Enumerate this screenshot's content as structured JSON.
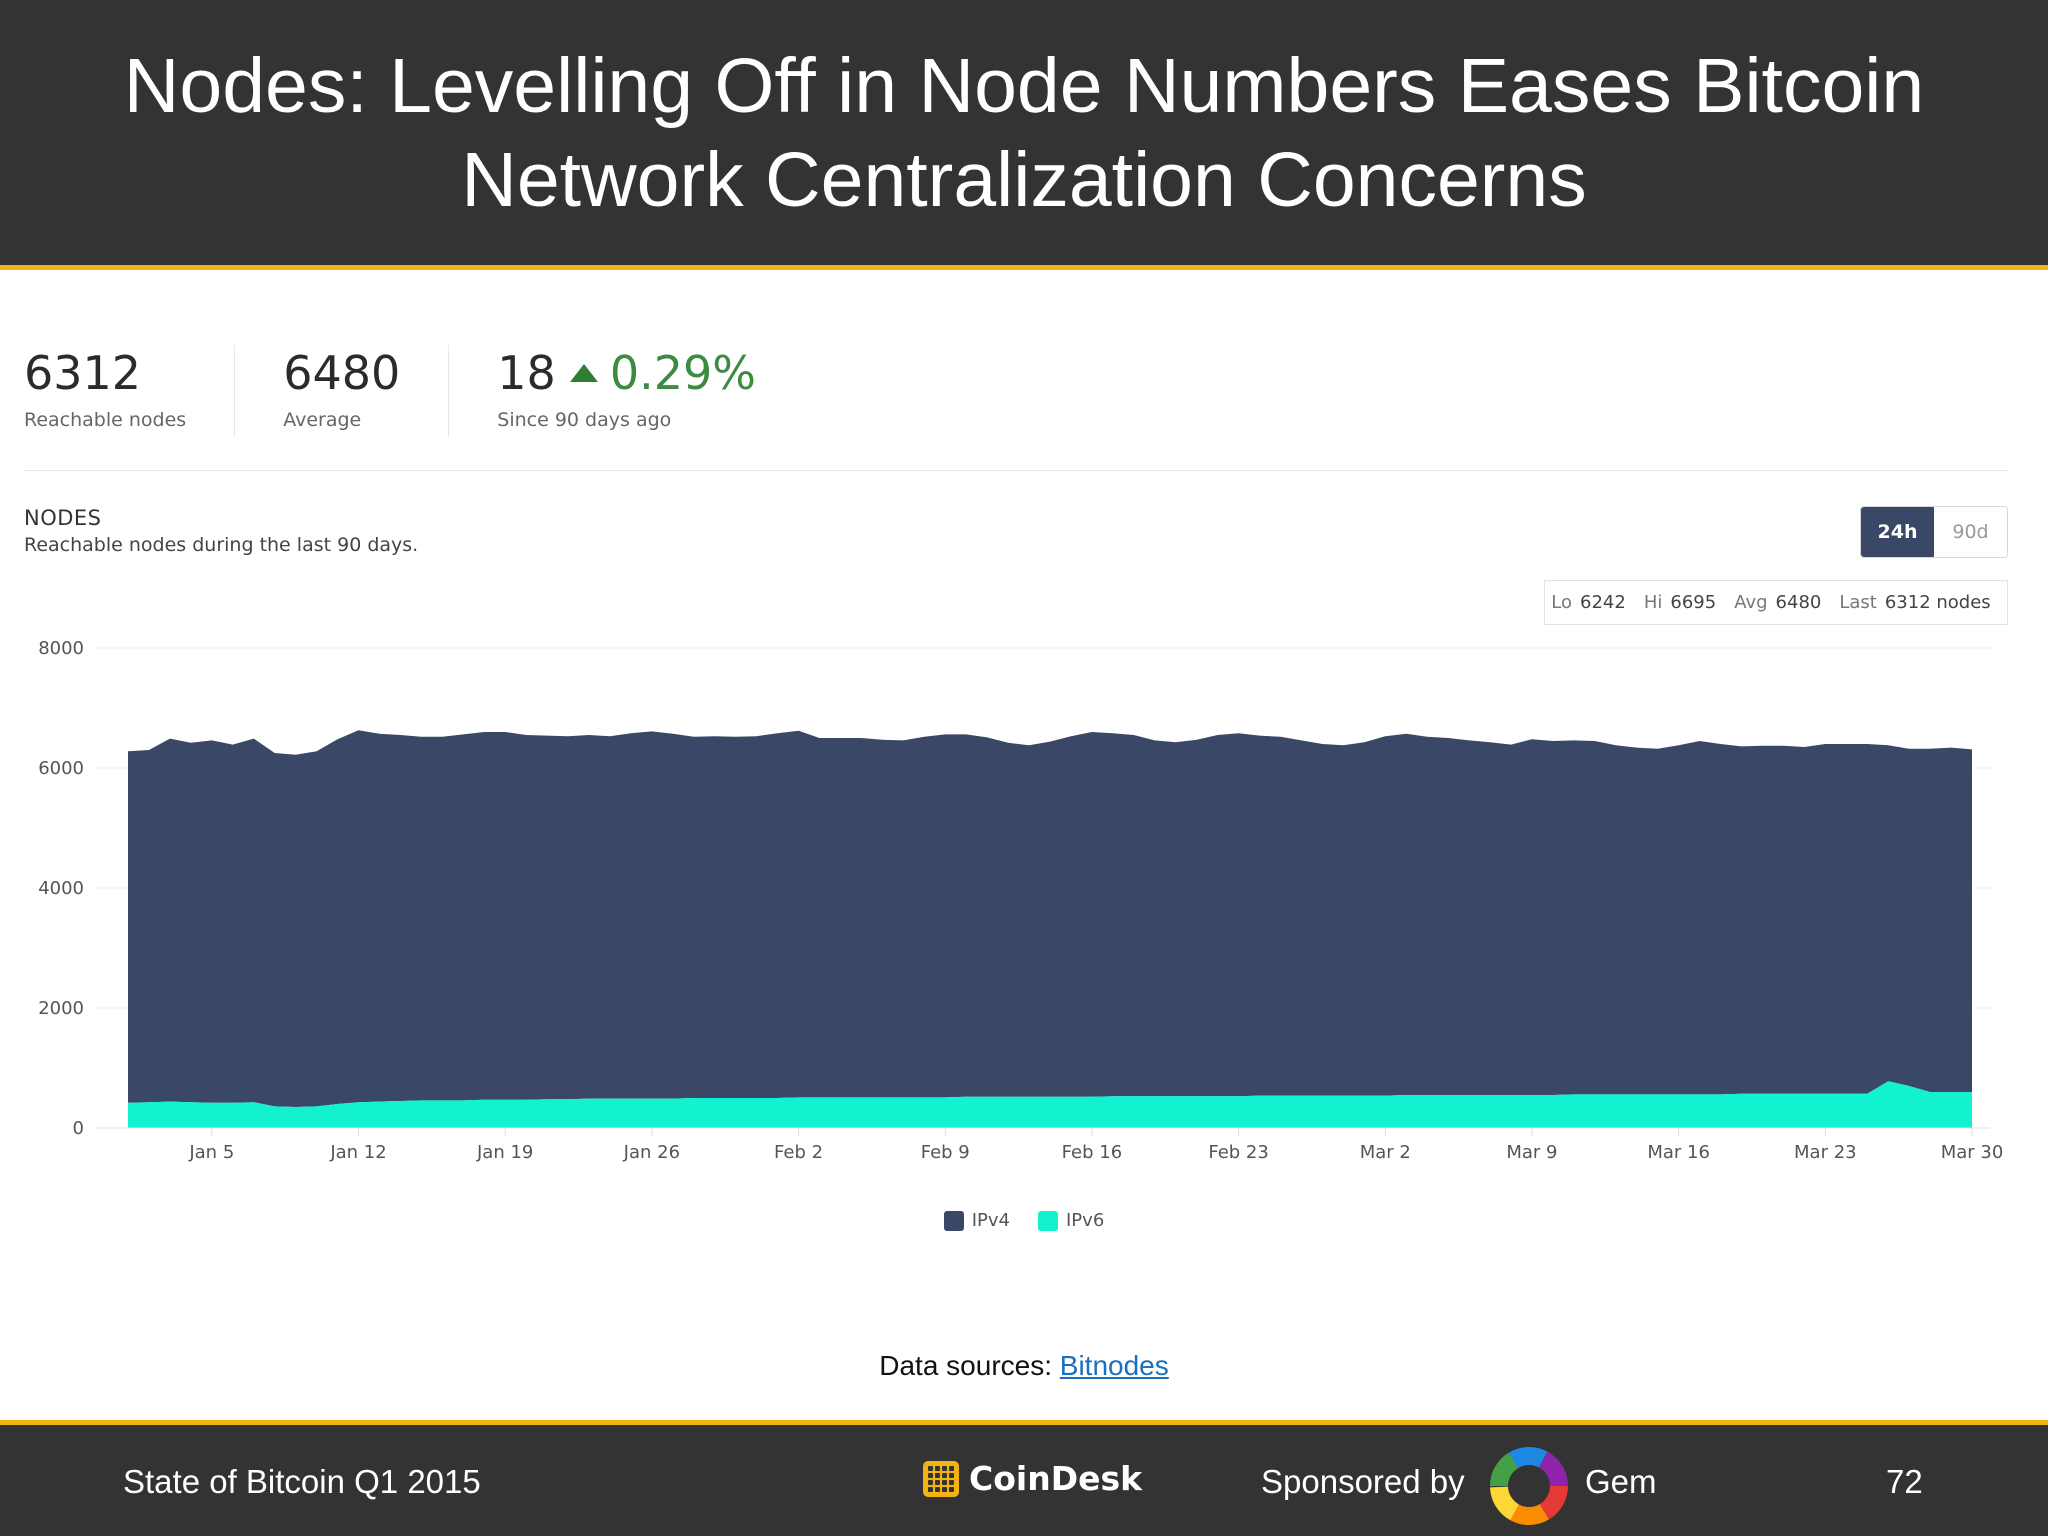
{
  "slide": {
    "title": "Nodes: Levelling Off in Node Numbers Eases Bitcoin Network Centralization Concerns"
  },
  "stats": {
    "reachable": {
      "value": "6312",
      "label": "Reachable nodes"
    },
    "average": {
      "value": "6480",
      "label": "Average"
    },
    "change": {
      "count": "18",
      "percent": "0.29%",
      "label": "Since 90 days ago"
    }
  },
  "panel": {
    "title": "NODES",
    "subtitle": "Reachable nodes during the last 90 days.",
    "range_options": {
      "active": "24h",
      "inactive": "90d"
    },
    "summary": {
      "lo_label": "Lo",
      "lo": "6242",
      "hi_label": "Hi",
      "hi": "6695",
      "avg_label": "Avg",
      "avg": "6480",
      "last_label": "Last",
      "last": "6312 nodes"
    }
  },
  "chart_data": {
    "type": "area",
    "stacked": true,
    "x_tick_labels": [
      "Jan 5",
      "Jan 12",
      "Jan 19",
      "Jan 26",
      "Feb 2",
      "Feb 9",
      "Feb 16",
      "Feb 23",
      "Mar 2",
      "Mar 9",
      "Mar 16",
      "Mar 23",
      "Mar 30"
    ],
    "y_tick_labels": [
      "0",
      "2000",
      "4000",
      "6000",
      "8000"
    ],
    "ylim": [
      0,
      8000
    ],
    "x": [
      "2015-01-01",
      "2015-01-02",
      "2015-01-03",
      "2015-01-04",
      "2015-01-05",
      "2015-01-06",
      "2015-01-07",
      "2015-01-08",
      "2015-01-09",
      "2015-01-10",
      "2015-01-11",
      "2015-01-12",
      "2015-01-13",
      "2015-01-14",
      "2015-01-15",
      "2015-01-16",
      "2015-01-17",
      "2015-01-18",
      "2015-01-19",
      "2015-01-20",
      "2015-01-21",
      "2015-01-22",
      "2015-01-23",
      "2015-01-24",
      "2015-01-25",
      "2015-01-26",
      "2015-01-27",
      "2015-01-28",
      "2015-01-29",
      "2015-01-30",
      "2015-01-31",
      "2015-02-01",
      "2015-02-02",
      "2015-02-03",
      "2015-02-04",
      "2015-02-05",
      "2015-02-06",
      "2015-02-07",
      "2015-02-08",
      "2015-02-09",
      "2015-02-10",
      "2015-02-11",
      "2015-02-12",
      "2015-02-13",
      "2015-02-14",
      "2015-02-15",
      "2015-02-16",
      "2015-02-17",
      "2015-02-18",
      "2015-02-19",
      "2015-02-20",
      "2015-02-21",
      "2015-02-22",
      "2015-02-23",
      "2015-02-24",
      "2015-02-25",
      "2015-02-26",
      "2015-02-27",
      "2015-02-28",
      "2015-03-01",
      "2015-03-02",
      "2015-03-03",
      "2015-03-04",
      "2015-03-05",
      "2015-03-06",
      "2015-03-07",
      "2015-03-08",
      "2015-03-09",
      "2015-03-10",
      "2015-03-11",
      "2015-03-12",
      "2015-03-13",
      "2015-03-14",
      "2015-03-15",
      "2015-03-16",
      "2015-03-17",
      "2015-03-18",
      "2015-03-19",
      "2015-03-20",
      "2015-03-21",
      "2015-03-22",
      "2015-03-23",
      "2015-03-24",
      "2015-03-25",
      "2015-03-26",
      "2015-03-27",
      "2015-03-28",
      "2015-03-29",
      "2015-03-30"
    ],
    "series": [
      {
        "name": "IPv4",
        "color": "#3a4766",
        "values": [
          5860,
          5870,
          6050,
          5990,
          6040,
          5970,
          6060,
          5890,
          5870,
          5920,
          6080,
          6200,
          6130,
          6100,
          6060,
          6060,
          6100,
          6130,
          6130,
          6080,
          6060,
          6050,
          6060,
          6040,
          6090,
          6120,
          6080,
          6020,
          6030,
          6020,
          6030,
          6080,
          6110,
          5990,
          5990,
          5990,
          5960,
          5950,
          6010,
          6050,
          6040,
          5990,
          5900,
          5860,
          5920,
          6010,
          6080,
          6050,
          6020,
          5930,
          5900,
          5940,
          6020,
          6050,
          6000,
          5980,
          5920,
          5860,
          5840,
          5890,
          5990,
          6020,
          5970,
          5950,
          5910,
          5880,
          5840,
          5930,
          5900,
          5900,
          5890,
          5820,
          5780,
          5760,
          5820,
          5890,
          5840,
          5790,
          5800,
          5800,
          5780,
          5830,
          5830,
          5830,
          5600,
          5620,
          5720,
          5740,
          5710
        ]
      },
      {
        "name": "IPv6",
        "color": "#13f2d0",
        "values": [
          420,
          430,
          440,
          430,
          420,
          420,
          430,
          360,
          350,
          360,
          400,
          430,
          440,
          450,
          460,
          460,
          460,
          470,
          470,
          470,
          480,
          480,
          490,
          490,
          490,
          490,
          490,
          500,
          500,
          500,
          500,
          500,
          510,
          510,
          510,
          510,
          510,
          510,
          510,
          510,
          520,
          520,
          520,
          520,
          520,
          520,
          520,
          530,
          530,
          530,
          530,
          530,
          530,
          530,
          540,
          540,
          540,
          540,
          540,
          540,
          540,
          550,
          550,
          550,
          550,
          550,
          550,
          550,
          550,
          560,
          560,
          560,
          560,
          560,
          560,
          560,
          560,
          570,
          570,
          570,
          570,
          570,
          570,
          570,
          780,
          700,
          600,
          600,
          600
        ]
      }
    ]
  },
  "source": {
    "label": "Data sources:",
    "link": "Bitnodes"
  },
  "footer": {
    "report": "State of Bitcoin Q1 2015",
    "brand": "CoinDesk",
    "sponsored_label": "Sponsored by",
    "sponsor": "Gem",
    "page_number": "72"
  }
}
